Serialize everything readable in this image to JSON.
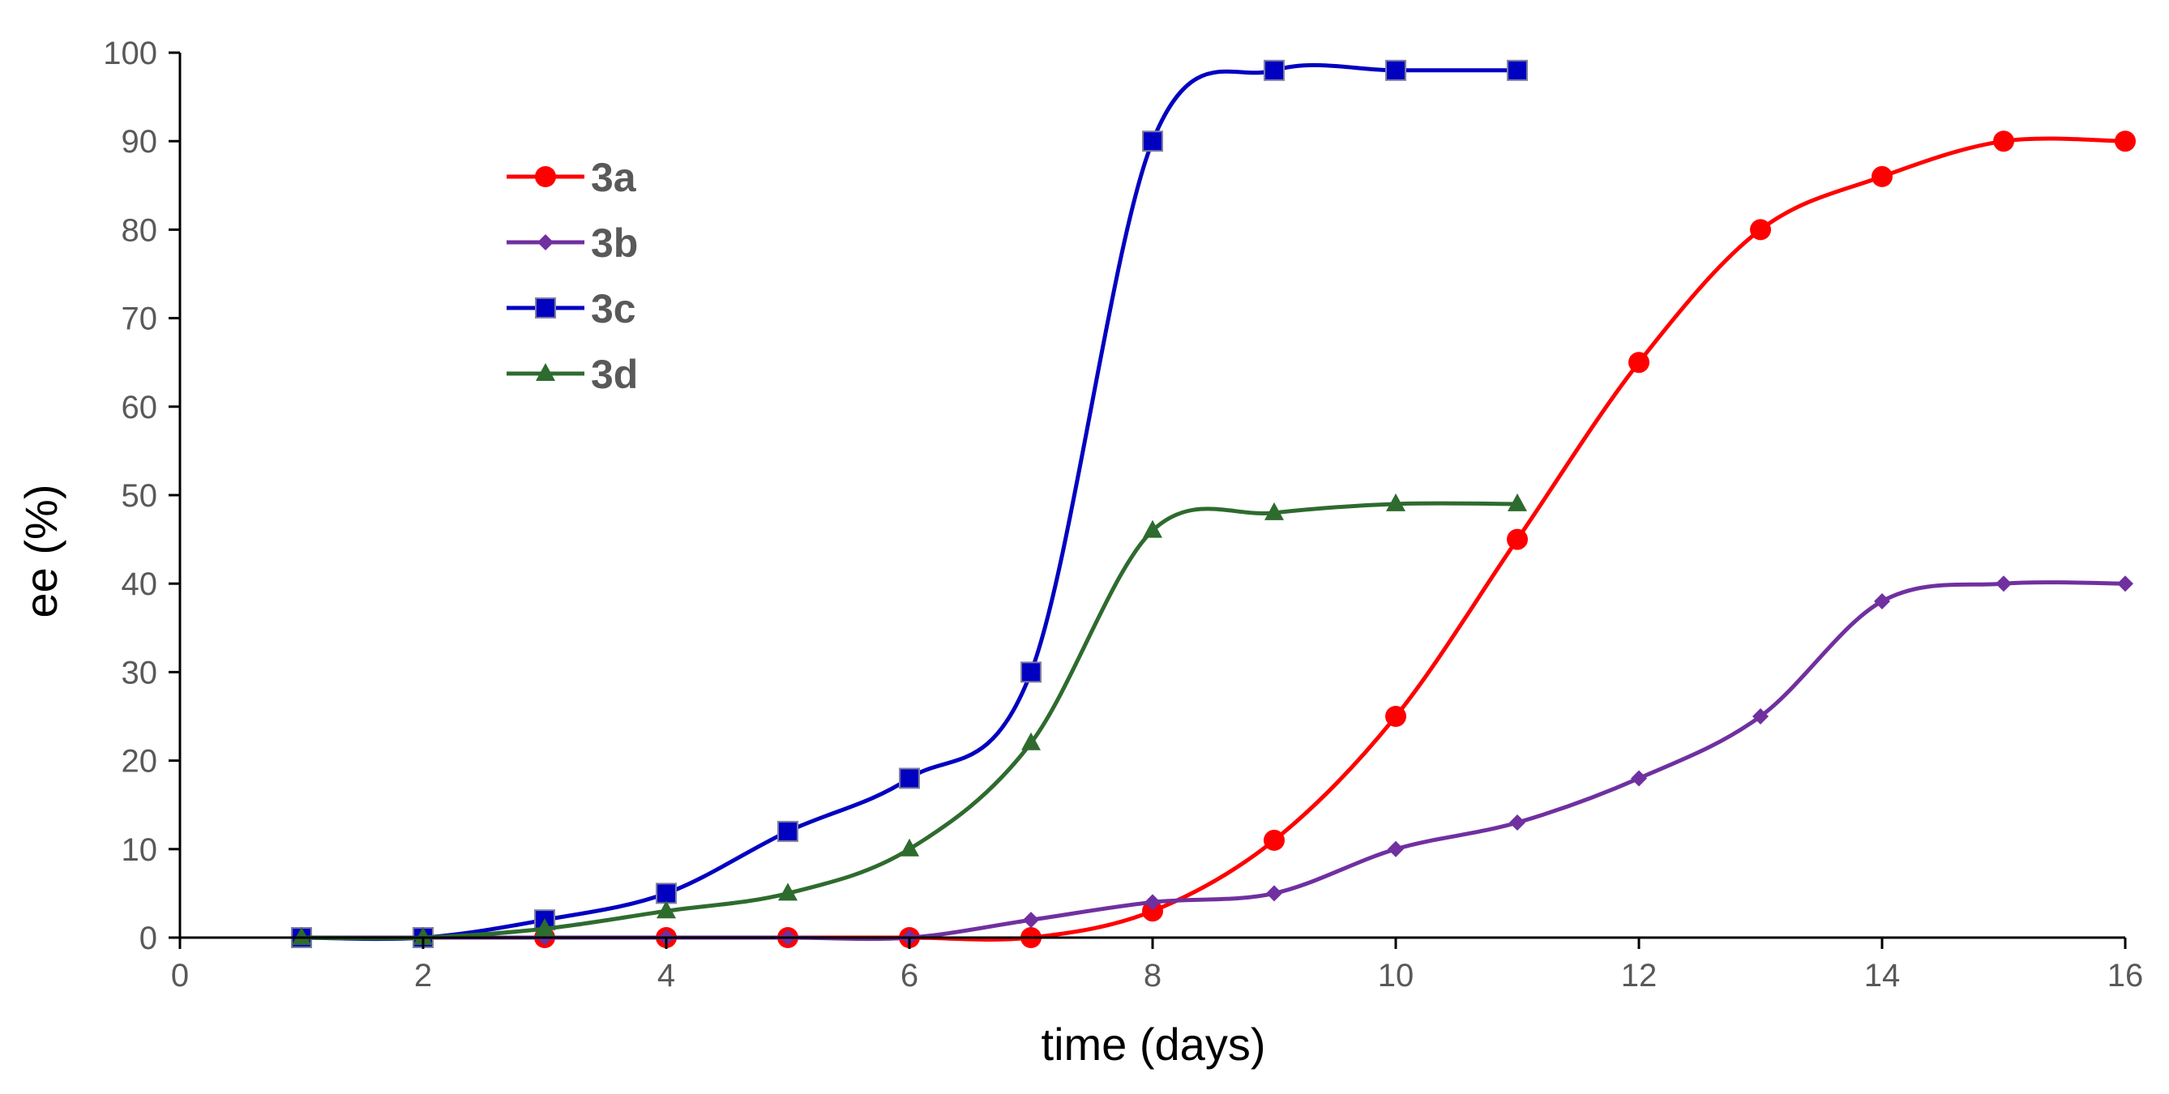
{
  "chart_data": {
    "type": "line",
    "title": "",
    "xlabel": "time (days)",
    "ylabel": "ee (%)",
    "xlim": [
      0,
      16
    ],
    "ylim": [
      0,
      100
    ],
    "xticks": [
      0,
      2,
      4,
      6,
      8,
      10,
      12,
      14,
      16
    ],
    "yticks": [
      0,
      10,
      20,
      30,
      40,
      50,
      60,
      70,
      80,
      90,
      100
    ],
    "grid": false,
    "legend_position": "top-left",
    "series": [
      {
        "name": "3a",
        "color": "#ff0000",
        "marker": "circle",
        "x": [
          1,
          2,
          3,
          4,
          5,
          6,
          7,
          8,
          9,
          10,
          11,
          12,
          13,
          14,
          15,
          16
        ],
        "y": [
          0,
          0,
          0,
          0,
          0,
          0,
          0,
          3,
          11,
          25,
          45,
          65,
          80,
          86,
          90,
          90
        ]
      },
      {
        "name": "3b",
        "color": "#7030a0",
        "marker": "diamond",
        "x": [
          1,
          2,
          3,
          4,
          5,
          6,
          7,
          8,
          9,
          10,
          11,
          12,
          13,
          14,
          15,
          16
        ],
        "y": [
          0,
          0,
          0,
          0,
          0,
          0,
          2,
          4,
          5,
          10,
          13,
          18,
          25,
          38,
          40,
          40
        ]
      },
      {
        "name": "3c",
        "color": "#0000c0",
        "marker": "square",
        "x": [
          1,
          2,
          3,
          4,
          5,
          6,
          7,
          8,
          9,
          10,
          11
        ],
        "y": [
          0,
          0,
          2,
          5,
          12,
          18,
          30,
          90,
          98,
          98,
          98
        ]
      },
      {
        "name": "3d",
        "color": "#2e6b2e",
        "marker": "triangle",
        "x": [
          1,
          2,
          3,
          4,
          5,
          6,
          7,
          8,
          9,
          10,
          11
        ],
        "y": [
          0,
          0,
          1,
          3,
          5,
          10,
          22,
          46,
          48,
          49,
          49
        ]
      }
    ]
  }
}
